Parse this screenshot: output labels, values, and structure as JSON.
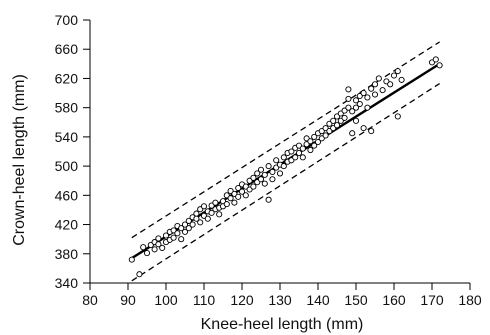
{
  "chart_data": {
    "type": "scatter",
    "title": "",
    "xlabel": "Knee-heel length (mm)",
    "ylabel": "Crown-heel length (mm)",
    "xlim": [
      80,
      180
    ],
    "ylim": [
      340,
      700
    ],
    "xticks": [
      80,
      90,
      100,
      110,
      120,
      130,
      140,
      150,
      160,
      170,
      180
    ],
    "yticks": [
      340,
      380,
      420,
      460,
      500,
      540,
      580,
      620,
      660,
      700
    ],
    "grid": false,
    "colors": {
      "ink": "#000000",
      "marker_fill": "#ffffff"
    },
    "series": [
      {
        "kind": "points",
        "marker": "open-circle",
        "points": [
          [
            91,
            372
          ],
          [
            93,
            352
          ],
          [
            94,
            389
          ],
          [
            95,
            381
          ],
          [
            96,
            392
          ],
          [
            97,
            386
          ],
          [
            97,
            396
          ],
          [
            98,
            393
          ],
          [
            98,
            401
          ],
          [
            99,
            388
          ],
          [
            100,
            405
          ],
          [
            100,
            396
          ],
          [
            101,
            410
          ],
          [
            101,
            399
          ],
          [
            102,
            412
          ],
          [
            102,
            402
          ],
          [
            103,
            408
          ],
          [
            103,
            418
          ],
          [
            104,
            415
          ],
          [
            104,
            400
          ],
          [
            105,
            420
          ],
          [
            105,
            410
          ],
          [
            106,
            425
          ],
          [
            106,
            415
          ],
          [
            107,
            430
          ],
          [
            107,
            420
          ],
          [
            108,
            428
          ],
          [
            108,
            435
          ],
          [
            109,
            423
          ],
          [
            109,
            441
          ],
          [
            110,
            432
          ],
          [
            110,
            445
          ],
          [
            111,
            438
          ],
          [
            111,
            428
          ],
          [
            112,
            446
          ],
          [
            112,
            436
          ],
          [
            113,
            441
          ],
          [
            113,
            450
          ],
          [
            114,
            443
          ],
          [
            114,
            434
          ],
          [
            115,
            452
          ],
          [
            115,
            445
          ],
          [
            116,
            460
          ],
          [
            116,
            448
          ],
          [
            117,
            456
          ],
          [
            117,
            466
          ],
          [
            118,
            462
          ],
          [
            118,
            450
          ],
          [
            119,
            470
          ],
          [
            119,
            458
          ],
          [
            120,
            465
          ],
          [
            120,
            475
          ],
          [
            121,
            472
          ],
          [
            121,
            460
          ],
          [
            122,
            480
          ],
          [
            122,
            468
          ],
          [
            123,
            484
          ],
          [
            123,
            472
          ],
          [
            124,
            478
          ],
          [
            124,
            490
          ],
          [
            125,
            482
          ],
          [
            125,
            495
          ],
          [
            126,
            488
          ],
          [
            126,
            476
          ],
          [
            127,
            454
          ],
          [
            127,
            500
          ],
          [
            128,
            492
          ],
          [
            128,
            482
          ],
          [
            129,
            498
          ],
          [
            129,
            508
          ],
          [
            130,
            502
          ],
          [
            130,
            490
          ],
          [
            131,
            512
          ],
          [
            131,
            500
          ],
          [
            132,
            506
          ],
          [
            132,
            518
          ],
          [
            133,
            520
          ],
          [
            133,
            508
          ],
          [
            134,
            512
          ],
          [
            134,
            525
          ],
          [
            135,
            518
          ],
          [
            135,
            528
          ],
          [
            136,
            524
          ],
          [
            136,
            512
          ],
          [
            137,
            530
          ],
          [
            137,
            538
          ],
          [
            138,
            534
          ],
          [
            138,
            522
          ],
          [
            139,
            540
          ],
          [
            139,
            528
          ],
          [
            140,
            545
          ],
          [
            140,
            533
          ],
          [
            141,
            548
          ],
          [
            141,
            538
          ],
          [
            142,
            552
          ],
          [
            142,
            542
          ],
          [
            143,
            558
          ],
          [
            143,
            548
          ],
          [
            144,
            562
          ],
          [
            144,
            552
          ],
          [
            145,
            568
          ],
          [
            145,
            556
          ],
          [
            146,
            572
          ],
          [
            146,
            562
          ],
          [
            147,
            576
          ],
          [
            147,
            566
          ],
          [
            148,
            580
          ],
          [
            148,
            592
          ],
          [
            148,
            605
          ],
          [
            149,
            575
          ],
          [
            149,
            545
          ],
          [
            150,
            590
          ],
          [
            150,
            580
          ],
          [
            150,
            562
          ],
          [
            151,
            596
          ],
          [
            151,
            585
          ],
          [
            152,
            600
          ],
          [
            152,
            552
          ],
          [
            153,
            594
          ],
          [
            153,
            580
          ],
          [
            154,
            606
          ],
          [
            154,
            548
          ],
          [
            155,
            612
          ],
          [
            155,
            598
          ],
          [
            156,
            620
          ],
          [
            157,
            604
          ],
          [
            158,
            616
          ],
          [
            159,
            612
          ],
          [
            160,
            624
          ],
          [
            161,
            630
          ],
          [
            161,
            568
          ],
          [
            162,
            618
          ],
          [
            170,
            642
          ],
          [
            171,
            646
          ],
          [
            172,
            638
          ]
        ]
      },
      {
        "kind": "fit",
        "style": "solid",
        "points": [
          [
            91,
            374
          ],
          [
            172,
            640
          ]
        ]
      },
      {
        "kind": "bound",
        "style": "dashed",
        "points": [
          [
            91,
            402
          ],
          [
            172,
            670
          ]
        ]
      },
      {
        "kind": "bound",
        "style": "dashed",
        "points": [
          [
            91,
            343
          ],
          [
            172,
            613
          ]
        ]
      }
    ]
  }
}
